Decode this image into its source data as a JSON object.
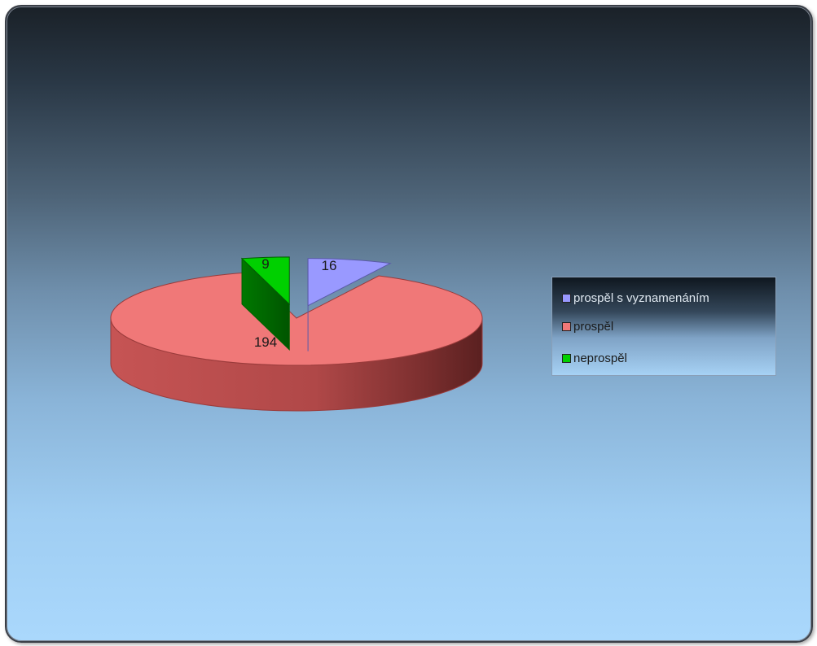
{
  "chart_data": {
    "type": "pie",
    "style": "3d-exploded",
    "title": "",
    "categories": [
      "prospěl s vyznamenáním",
      "prospěl",
      "neprospěl"
    ],
    "values": [
      16,
      194,
      9
    ],
    "data_labels": [
      "16",
      "194",
      "9"
    ],
    "colors": [
      "#9999ff",
      "#f07878",
      "#00d000"
    ],
    "legend_position": "right"
  }
}
